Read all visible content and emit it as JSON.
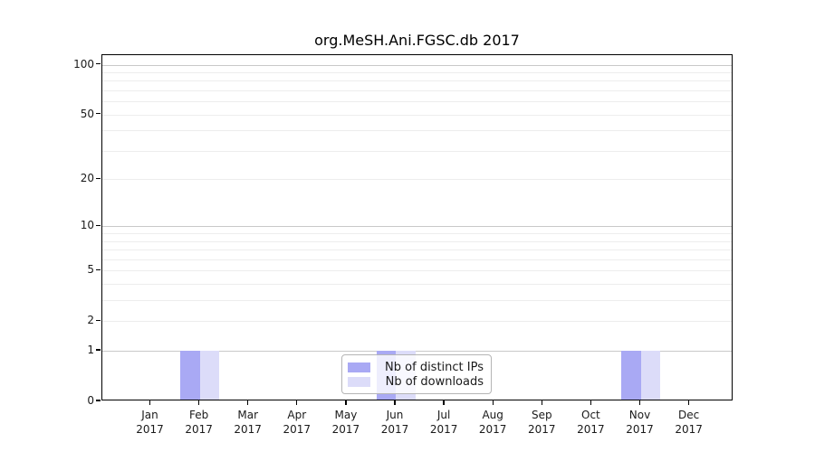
{
  "title": "org.MeSH.Ani.FGSC.db 2017",
  "chart_data": {
    "type": "bar",
    "title": "org.MeSH.Ani.FGSC.db 2017",
    "categories": [
      "Jan",
      "Feb",
      "Mar",
      "Apr",
      "May",
      "Jun",
      "Jul",
      "Aug",
      "Sep",
      "Oct",
      "Nov",
      "Dec"
    ],
    "x_year": "2017",
    "series": [
      {
        "name": "Nb of distinct IPs",
        "color": "#a9a9f4",
        "values": [
          0,
          1,
          0,
          0,
          0,
          1,
          0,
          0,
          0,
          0,
          1,
          0
        ]
      },
      {
        "name": "Nb of downloads",
        "color": "#dcdcf9",
        "values": [
          0,
          1,
          0,
          0,
          0,
          1,
          0,
          0,
          0,
          0,
          1,
          0
        ]
      }
    ],
    "yscale": "log1p",
    "ylim": [
      0,
      114
    ],
    "yticks": [
      0,
      1,
      2,
      5,
      10,
      20,
      50,
      100
    ],
    "minor_yticks": [
      3,
      4,
      6,
      7,
      8,
      9,
      30,
      40,
      60,
      70,
      80,
      90
    ],
    "major_gridlines": [
      1,
      10,
      100
    ],
    "grid": true,
    "legend_position": "inside-bottom-center"
  },
  "colors": {
    "distinct_ips": "#a9a9f4",
    "downloads": "#dcdcf9",
    "grid_major": "#c9c9c9",
    "grid_minor": "#ededed",
    "axis": "#000000",
    "background": "#ffffff"
  }
}
